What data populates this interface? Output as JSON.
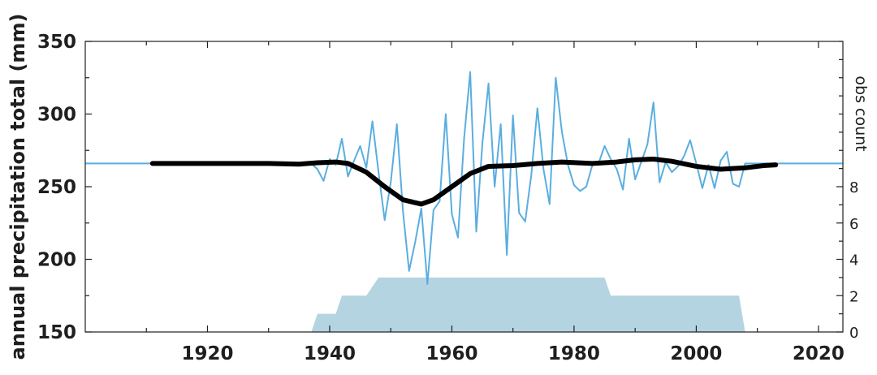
{
  "chart_data": {
    "type": "line",
    "title": "",
    "xlabel": "",
    "ylabel": "annual precipitation total (mm)",
    "y2label": "obs count",
    "xlim": [
      1900,
      2024
    ],
    "ylim": [
      150,
      350
    ],
    "y2lim": [
      0,
      16
    ],
    "x_ticks": [
      1920,
      1940,
      1960,
      1980,
      2000,
      2020
    ],
    "y_ticks": [
      150,
      200,
      250,
      300,
      350
    ],
    "y2_ticks": [
      0,
      2,
      4,
      6,
      8
    ],
    "grid": false,
    "colors": {
      "annual": "#5aaee0",
      "smooth": "#000000",
      "obs": "#b4d4e2",
      "axes": "#1f1f1f"
    },
    "series": [
      {
        "id": "baseline",
        "style": "line",
        "x": [
          1900,
          1911,
          1911,
          1937,
          1937,
          2024
        ],
        "y": [
          266,
          266,
          266,
          266,
          266,
          266
        ],
        "segments": [
          [
            1900,
            1911
          ],
          [
            2013,
            2024
          ]
        ]
      },
      {
        "id": "annual",
        "style": "line",
        "x": [
          1937,
          1938,
          1939,
          1940,
          1941,
          1942,
          1943,
          1944,
          1945,
          1946,
          1947,
          1948,
          1949,
          1950,
          1951,
          1952,
          1953,
          1954,
          1955,
          1956,
          1957,
          1958,
          1959,
          1960,
          1961,
          1962,
          1963,
          1964,
          1965,
          1966,
          1967,
          1968,
          1969,
          1970,
          1971,
          1972,
          1973,
          1974,
          1975,
          1976,
          1977,
          1978,
          1979,
          1980,
          1981,
          1982,
          1983,
          1984,
          1985,
          1986,
          1987,
          1988,
          1989,
          1990,
          1991,
          1992,
          1993,
          1994,
          1995,
          1996,
          1997,
          1998,
          1999,
          2000,
          2001,
          2002,
          2003,
          2004,
          2005,
          2006,
          2007,
          2008,
          2009,
          2010,
          2011,
          2012,
          2013
        ],
        "y": [
          266,
          262,
          254,
          269,
          265,
          283,
          257,
          268,
          278,
          263,
          295,
          260,
          227,
          253,
          293,
          233,
          192,
          212,
          235,
          183,
          234,
          240,
          300,
          231,
          215,
          283,
          329,
          219,
          280,
          321,
          250,
          293,
          203,
          299,
          232,
          226,
          258,
          304,
          262,
          238,
          325,
          288,
          265,
          251,
          247,
          250,
          265,
          266,
          278,
          269,
          262,
          248,
          283,
          255,
          267,
          279,
          308,
          253,
          267,
          260,
          264,
          271,
          282,
          266,
          249,
          265,
          249,
          268,
          274,
          252,
          250,
          266,
          266,
          266,
          266,
          266,
          266
        ]
      },
      {
        "id": "smooth",
        "style": "thick-line",
        "x": [
          1911,
          1920,
          1930,
          1935,
          1938,
          1941,
          1943,
          1946,
          1949,
          1952,
          1955,
          1957,
          1960,
          1963,
          1966,
          1970,
          1974,
          1978,
          1983,
          1987,
          1990,
          1993,
          1996,
          2000,
          2004,
          2008,
          2011,
          2013
        ],
        "y": [
          266,
          266,
          266,
          265.5,
          266.5,
          267,
          266,
          260,
          250,
          241,
          238,
          241,
          250,
          259,
          264,
          264.5,
          266,
          267,
          266,
          267,
          268.5,
          269,
          267.5,
          264,
          262,
          263,
          264.5,
          265
        ]
      },
      {
        "id": "obs_count",
        "style": "area",
        "axis": "y2",
        "x": [
          1937,
          1938,
          1941,
          1942,
          1946,
          1948,
          1985,
          1986,
          2007,
          2008
        ],
        "y": [
          0,
          1,
          1,
          2,
          2,
          3,
          3,
          2,
          2,
          0
        ]
      }
    ]
  }
}
